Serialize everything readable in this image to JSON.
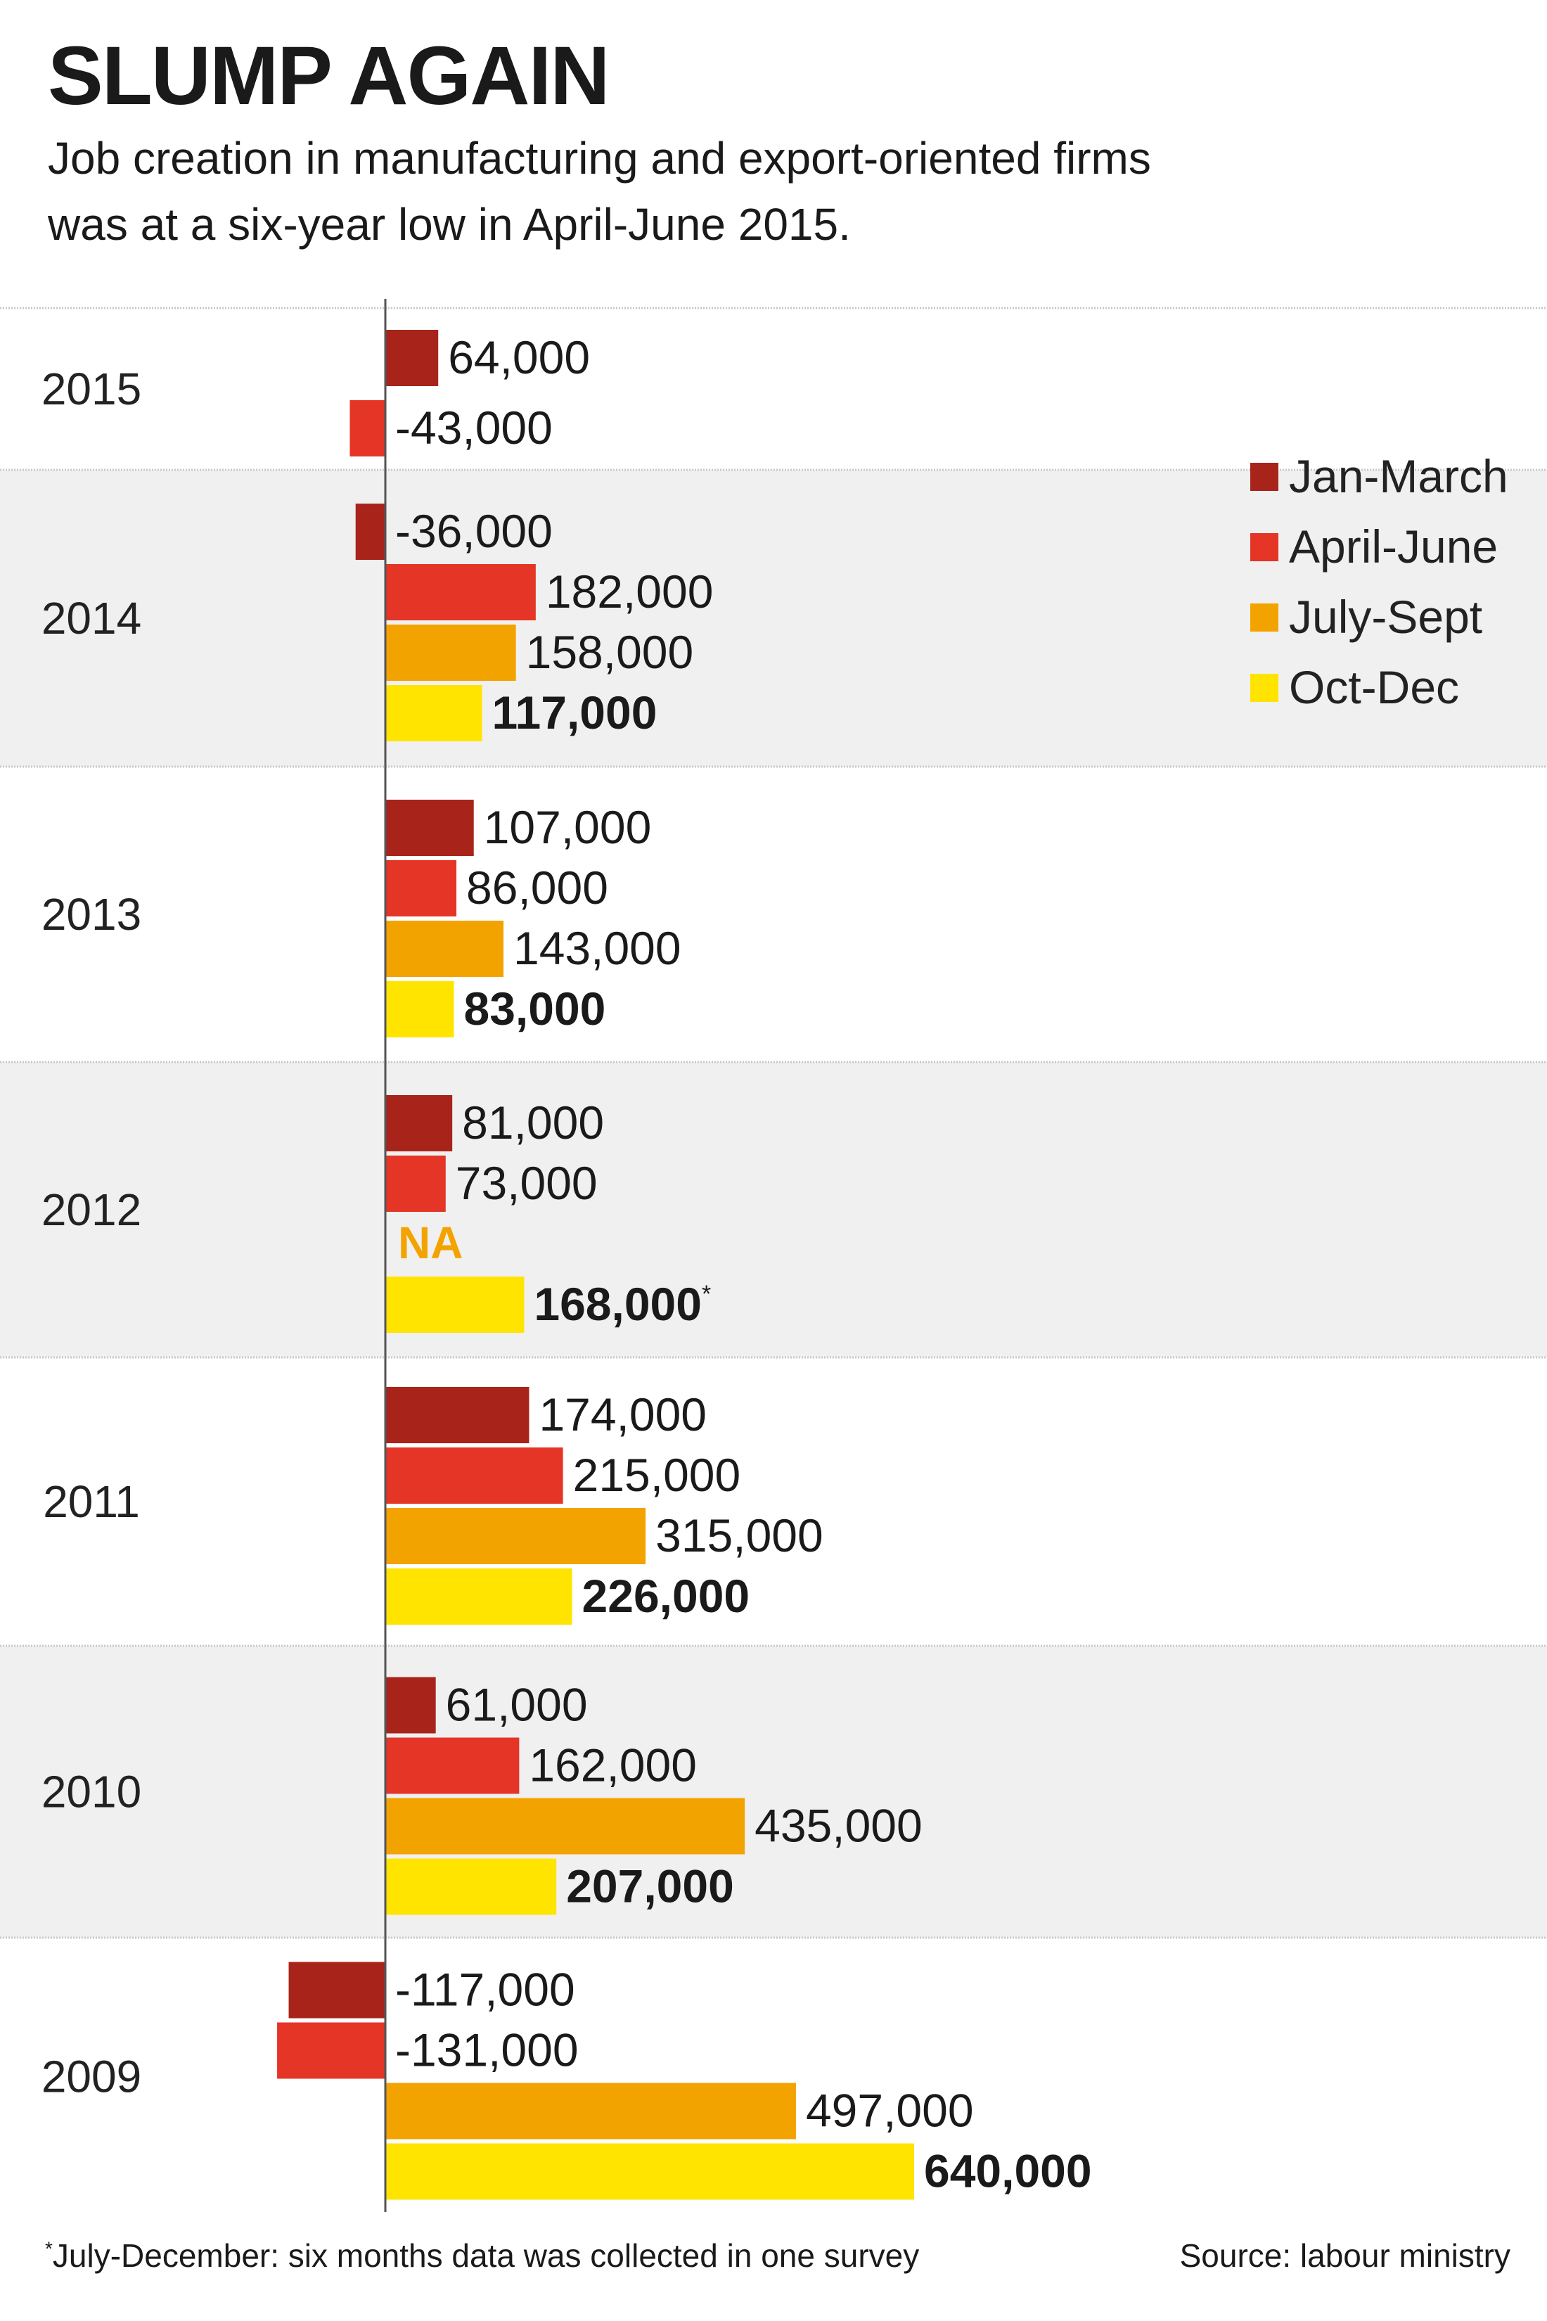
{
  "title": "SLUMP AGAIN",
  "subtitle": "Job creation in manufacturing and export-oriented firms was at a six-year low in April-June 2015.",
  "footnote": {
    "marker": "*",
    "text": "July-December: six months data was collected in one survey"
  },
  "source": "Source: labour ministry",
  "colors": {
    "jan_march": "#a8241a",
    "april_june": "#e43526",
    "july_sept": "#f3a300",
    "oct_dec": "#ffe400",
    "band": "#f0f0f0",
    "na": "#f3a300"
  },
  "chart_data": {
    "type": "bar",
    "orientation": "horizontal",
    "grid": false,
    "legend_position": "top-right",
    "series": [
      {
        "name": "Jan-March",
        "color_key": "jan_march"
      },
      {
        "name": "April-June",
        "color_key": "april_june"
      },
      {
        "name": "July-Sept",
        "color_key": "july_sept"
      },
      {
        "name": "Oct-Dec",
        "color_key": "oct_dec"
      }
    ],
    "years": [
      {
        "year": "2015",
        "shaded": false,
        "bars": [
          {
            "series": 0,
            "value": 64000,
            "label": "64,000"
          },
          {
            "series": 1,
            "value": -43000,
            "label": "-43,000"
          }
        ]
      },
      {
        "year": "2014",
        "shaded": true,
        "bars": [
          {
            "series": 0,
            "value": -36000,
            "label": "-36,000"
          },
          {
            "series": 1,
            "value": 182000,
            "label": "182,000"
          },
          {
            "series": 2,
            "value": 158000,
            "label": "158,000"
          },
          {
            "series": 3,
            "value": 117000,
            "label": "117,000",
            "bold": true
          }
        ]
      },
      {
        "year": "2013",
        "shaded": false,
        "bars": [
          {
            "series": 0,
            "value": 107000,
            "label": "107,000"
          },
          {
            "series": 1,
            "value": 86000,
            "label": "86,000"
          },
          {
            "series": 2,
            "value": 143000,
            "label": "143,000"
          },
          {
            "series": 3,
            "value": 83000,
            "label": "83,000",
            "bold": true
          }
        ]
      },
      {
        "year": "2012",
        "shaded": true,
        "bars": [
          {
            "series": 0,
            "value": 81000,
            "label": "81,000"
          },
          {
            "series": 1,
            "value": 73000,
            "label": "73,000"
          },
          {
            "series": 2,
            "value": null,
            "label": "NA",
            "na": true
          },
          {
            "series": 3,
            "value": 168000,
            "label": "168,000",
            "bold": true,
            "note": "*"
          }
        ]
      },
      {
        "year": "2011",
        "shaded": false,
        "bars": [
          {
            "series": 0,
            "value": 174000,
            "label": "174,000"
          },
          {
            "series": 1,
            "value": 215000,
            "label": "215,000"
          },
          {
            "series": 2,
            "value": 315000,
            "label": "315,000"
          },
          {
            "series": 3,
            "value": 226000,
            "label": "226,000",
            "bold": true
          }
        ]
      },
      {
        "year": "2010",
        "shaded": true,
        "bars": [
          {
            "series": 0,
            "value": 61000,
            "label": "61,000"
          },
          {
            "series": 1,
            "value": 162000,
            "label": "162,000"
          },
          {
            "series": 2,
            "value": 435000,
            "label": "435,000"
          },
          {
            "series": 3,
            "value": 207000,
            "label": "207,000",
            "bold": true
          }
        ]
      },
      {
        "year": "2009",
        "shaded": false,
        "bars": [
          {
            "series": 0,
            "value": -117000,
            "label": "-117,000"
          },
          {
            "series": 1,
            "value": -131000,
            "label": "-131,000"
          },
          {
            "series": 2,
            "value": 497000,
            "label": "497,000"
          },
          {
            "series": 3,
            "value": 640000,
            "label": "640,000",
            "bold": true
          }
        ]
      }
    ]
  }
}
